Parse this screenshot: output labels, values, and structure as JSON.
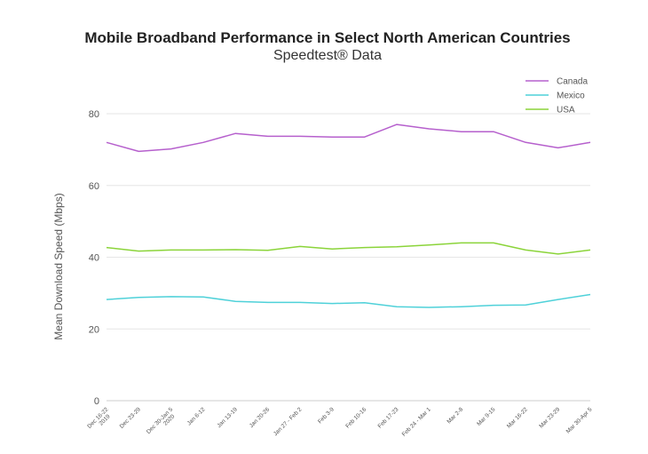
{
  "chart_data": {
    "type": "line",
    "title": "Mobile Broadband Performance in Select North American Countries",
    "subtitle": "Speedtest® Data",
    "ylabel": "Mean Download Speed (Mbps)",
    "xlabel": "",
    "ylim": [
      0,
      80
    ],
    "yticks": [
      "0",
      "20",
      "40",
      "60",
      "80"
    ],
    "grid": true,
    "legend_position": "top-right",
    "categories": [
      [
        "Dec 16-22",
        "2019"
      ],
      [
        "Dec 23-29"
      ],
      [
        "Dec 30-Jan 5",
        "2020"
      ],
      [
        "Jan 6-12"
      ],
      [
        "Jan 13-19"
      ],
      [
        "Jan 20-26"
      ],
      [
        "Jan 27 - Feb 2"
      ],
      [
        "Feb 3-9"
      ],
      [
        "Feb 10-16"
      ],
      [
        "Feb 17-23"
      ],
      [
        "Feb 24 - Mar 1"
      ],
      [
        "Mar 2-8"
      ],
      [
        "Mar 9-15"
      ],
      [
        "Mar 16-22"
      ],
      [
        "Mar 23-29"
      ],
      [
        "Mar 30-Apr 5"
      ]
    ],
    "series": [
      {
        "name": "Canada",
        "color": "#b660cd",
        "values": [
          72.0,
          69.5,
          70.2,
          72.0,
          74.5,
          73.7,
          73.7,
          73.5,
          73.5,
          77.0,
          75.8,
          75.0,
          75.0,
          72.0,
          70.5,
          72.0
        ]
      },
      {
        "name": "Mexico",
        "color": "#4fd1d9",
        "values": [
          28.2,
          28.8,
          29.0,
          28.9,
          27.7,
          27.4,
          27.4,
          27.1,
          27.3,
          26.2,
          26.0,
          26.2,
          26.6,
          26.7,
          28.2,
          29.6
        ]
      },
      {
        "name": "USA",
        "color": "#8bd43a",
        "values": [
          42.7,
          41.7,
          42.0,
          42.0,
          42.1,
          41.9,
          43.0,
          42.3,
          42.7,
          42.9,
          43.4,
          44.0,
          44.0,
          42.0,
          40.9,
          42.0
        ]
      }
    ]
  }
}
